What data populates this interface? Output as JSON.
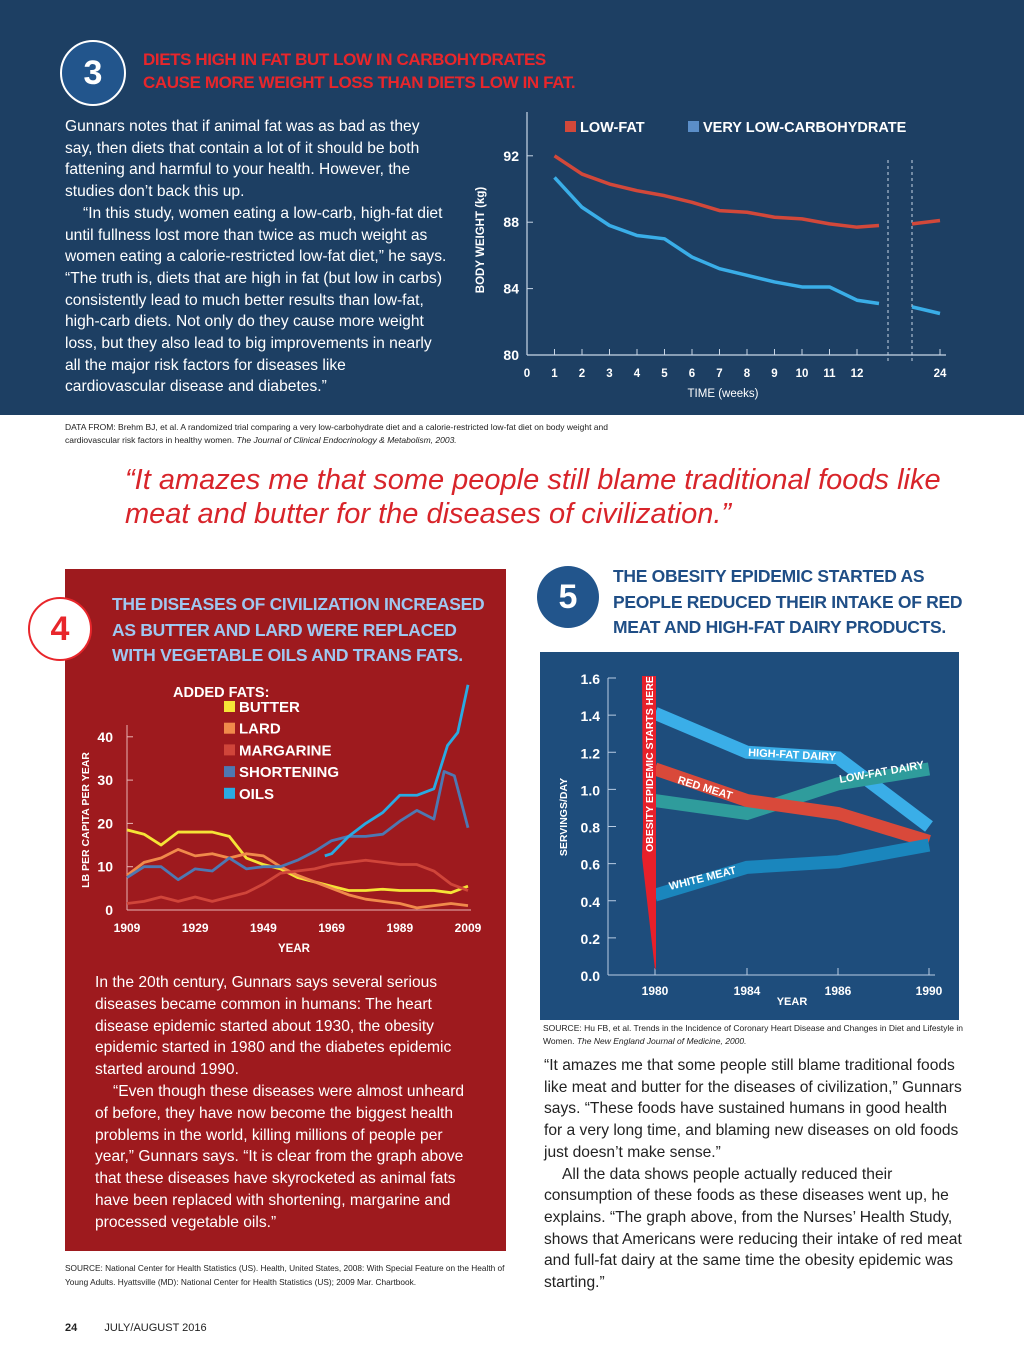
{
  "section3": {
    "number": "3",
    "title_line1": "DIETS HIGH IN FAT BUT LOW IN CARBOHYDRATES",
    "title_line2": "CAUSE MORE WEIGHT LOSS THAN DIETS LOW IN FAT.",
    "paragraphs": [
      "Gunnars notes that if animal fat was as bad as they say, then diets that contain a lot of it should be both fattening and harmful to your health. However, the studies don’t back this up.",
      "“In this study, women eating a low-carb, high-fat diet until fullness lost more than twice as much weight as women eating a calorie-restricted low-fat diet,” he says. “The truth is, diets that are high in fat (but low in carbs) consistently lead to much better results than low-fat, high-carb diets. Not only do they cause more weight loss, but they also lead to big improvements in nearly all the major risk factors for diseases like cardiovascular disease and diabetes.”"
    ],
    "source_text": "DATA FROM: Brehm BJ, et al. A randomized trial comparing a very low-carbohydrate diet and a calorie-restricted low-fat diet on body weight and cardiovascular risk factors in healthy women. ",
    "source_journal": "The Journal of Clinical Endocrinology & Metabolism, 2003."
  },
  "pull_quote": "“It amazes me that some people still blame traditional foods like meat and butter for the diseases of civilization.”",
  "section4": {
    "number": "4",
    "title": "THE DISEASES OF CIVILIZATION INCREASED AS BUTTER AND LARD WERE REPLACED WITH VEGETABLE OILS AND TRANS FATS.",
    "paragraphs": [
      "In the 20th century, Gunnars says several serious diseases became common in humans: The heart disease epidemic started about 1930, the obesity epidemic started in 1980 and the diabetes epidemic started around 1990.",
      "“Even though these diseases were almost unheard of before, they have now become the biggest health problems in the world, killing millions of people per year,” Gunnars says. “It is clear from the graph above that these diseases have skyrocketed as animal fats have been replaced with shortening, margarine and processed vegetable oils.”"
    ],
    "source_text": "SOURCE: National Center for Health Statistics (US). Health, United States, 2008: With Special Feature on the Health of Young Adults. Hyattsville (MD): National Center for Health Statistics (US); 2009 Mar. Chartbook."
  },
  "section5": {
    "number": "5",
    "title": "THE OBESITY EPIDEMIC STARTED AS PEOPLE REDUCED THEIR INTAKE OF RED MEAT AND HIGH-FAT DAIRY PRODUCTS.",
    "source_text": "SOURCE: Hu FB, et al. Trends in the Incidence of Coronary Heart Disease and Changes in Diet and Lifestyle in Women. ",
    "source_journal": "The New England Journal of Medicine, 2000.",
    "paragraphs": [
      "“It amazes me that some people still blame traditional foods like meat and butter for the diseases of civilization,” Gunnars says. “These foods have sustained humans in good health for a very long time, and blaming new diseases on old foods just doesn’t make sense.”",
      "All the data shows people actually reduced their consumption of these foods as these diseases went up, he explains. “The graph above, from the Nurses’ Health Study, shows that Americans were reducing their intake of red meat and full-fat dairy at the same time the obesity epidemic was starting.”"
    ]
  },
  "footer": {
    "page_number": "24",
    "issue": "JULY/AUGUST 2016"
  },
  "chart_data": [
    {
      "type": "line",
      "title": "",
      "xlabel": "TIME (weeks)",
      "ylabel": "BODY WEIGHT (kg)",
      "ylim": [
        80,
        94
      ],
      "x_ticks": [
        "0",
        "1",
        "2",
        "3",
        "4",
        "5",
        "6",
        "7",
        "8",
        "9",
        "10",
        "11",
        "12",
        "24"
      ],
      "y_ticks": [
        "80",
        "84",
        "88",
        "92"
      ],
      "x": [
        1,
        2,
        3,
        4,
        5,
        6,
        7,
        8,
        9,
        10,
        11,
        12,
        "13(break)",
        24
      ],
      "legend": [
        "LOW-FAT",
        "VERY LOW-CARBOHYDRATE"
      ],
      "legend_position": "top",
      "series": [
        {
          "name": "LOW-FAT",
          "color": "#d2483a",
          "x": [
            1,
            2,
            3,
            4,
            5,
            6,
            7,
            8,
            9,
            10,
            11,
            12,
            12.8
          ],
          "values": [
            92.0,
            90.9,
            90.3,
            89.9,
            89.6,
            89.2,
            88.7,
            88.6,
            88.3,
            88.2,
            87.9,
            87.7,
            87.8
          ],
          "after_break": {
            "x": [
              13.2,
              24
            ],
            "values": [
              87.9,
              88.1
            ]
          }
        },
        {
          "name": "VERY LOW-CARBOHYDRATE",
          "color": "#3aaee8",
          "x": [
            1,
            2,
            3,
            4,
            5,
            6,
            7,
            8,
            9,
            10,
            11,
            12,
            12.8
          ],
          "values": [
            90.7,
            88.9,
            87.8,
            87.2,
            87.0,
            85.9,
            85.2,
            84.8,
            84.4,
            84.1,
            84.1,
            83.3,
            83.1
          ],
          "after_break": {
            "x": [
              13.2,
              24
            ],
            "values": [
              82.9,
              82.5
            ]
          }
        }
      ]
    },
    {
      "type": "line",
      "title": "ADDED FATS:",
      "xlabel": "YEAR",
      "ylabel": "LB PER CAPITA PER YEAR",
      "ylim": [
        0,
        42
      ],
      "x_ticks": [
        "1909",
        "1929",
        "1949",
        "1969",
        "1989",
        "2009"
      ],
      "y_ticks": [
        "0",
        "10",
        "20",
        "30",
        "40"
      ],
      "legend": [
        "BUTTER",
        "LARD",
        "MARGARINE",
        "SHORTENING",
        "OILS"
      ],
      "legend_position": "top-center",
      "series": [
        {
          "name": "BUTTER",
          "color": "#f5e437",
          "x": [
            1909,
            1914,
            1919,
            1924,
            1929,
            1934,
            1939,
            1944,
            1949,
            1954,
            1959,
            1964,
            1969,
            1974,
            1979,
            1984,
            1989,
            1994,
            1999,
            2004,
            2009
          ],
          "values": [
            18.5,
            17.5,
            15,
            18,
            18,
            18,
            17,
            12,
            10.5,
            9.5,
            7.5,
            6.5,
            5.5,
            4.5,
            4.5,
            4.8,
            4.5,
            4.5,
            4.5,
            4,
            5.5
          ]
        },
        {
          "name": "LARD",
          "color": "#f08a4b",
          "x": [
            1909,
            1914,
            1919,
            1924,
            1929,
            1934,
            1939,
            1944,
            1949,
            1954,
            1959,
            1964,
            1969,
            1974,
            1979,
            1984,
            1989,
            1994,
            1999,
            2004,
            2009
          ],
          "values": [
            8,
            11,
            12,
            14,
            12.5,
            13,
            12,
            13,
            12.5,
            10,
            8,
            6.5,
            5,
            3.5,
            2.5,
            2,
            1.5,
            0.5,
            1,
            1.5,
            1
          ]
        },
        {
          "name": "MARGARINE",
          "color": "#d0453a",
          "x": [
            1909,
            1914,
            1919,
            1924,
            1929,
            1934,
            1939,
            1944,
            1949,
            1954,
            1959,
            1964,
            1969,
            1974,
            1979,
            1984,
            1989,
            1994,
            1999,
            2004,
            2009
          ],
          "values": [
            1.5,
            2,
            3,
            2,
            3,
            2,
            3,
            4,
            6,
            8.5,
            9,
            9.5,
            10.5,
            11,
            11.5,
            11,
            10.5,
            10.5,
            9,
            6,
            4.5
          ]
        },
        {
          "name": "SHORTENING",
          "color": "#4e78b2",
          "x": [
            1909,
            1914,
            1919,
            1924,
            1929,
            1934,
            1939,
            1944,
            1949,
            1954,
            1959,
            1964,
            1969,
            1974,
            1979,
            1984,
            1989,
            1994,
            1999,
            2002,
            2005,
            2009
          ],
          "values": [
            7.5,
            10,
            10,
            7,
            9.5,
            9,
            12,
            9.5,
            10,
            10,
            11.5,
            13.5,
            16,
            17,
            17,
            17.5,
            20.5,
            23,
            21,
            32,
            31,
            19
          ]
        },
        {
          "name": "OILS",
          "color": "#2aaae2",
          "x": [
            1967,
            1969,
            1974,
            1979,
            1984,
            1989,
            1994,
            1999,
            2003,
            2006,
            2009
          ],
          "values": [
            12.5,
            13,
            17,
            20,
            22.5,
            26.5,
            26.5,
            28,
            38,
            41,
            52
          ]
        }
      ]
    },
    {
      "type": "line",
      "title": "",
      "xlabel": "YEAR",
      "ylabel": "SERVINGS/DAY",
      "ylim": [
        0,
        1.6
      ],
      "x_ticks": [
        "1980",
        "1984",
        "1986",
        "1990"
      ],
      "y_ticks": [
        "0.0",
        "0.2",
        "0.4",
        "0.6",
        "0.8",
        "1.0",
        "1.2",
        "1.4",
        "1.6"
      ],
      "annotations": [
        "OBESITY EPIDEMIC STARTS HERE"
      ],
      "series": [
        {
          "name": "HIGH-FAT DAIRY",
          "color": "#3aaee8",
          "x": [
            "1980",
            "1984",
            "1986",
            "1990"
          ],
          "values": [
            1.41,
            1.2,
            1.17,
            0.8
          ]
        },
        {
          "name": "LOW-FAT DAIRY",
          "color": "#2f9c9c",
          "x": [
            "1980",
            "1984",
            "1986",
            "1990"
          ],
          "values": [
            0.94,
            0.87,
            1.03,
            1.11
          ]
        },
        {
          "name": "RED MEAT",
          "color": "#d9493a",
          "x": [
            "1980",
            "1984",
            "1986",
            "1990"
          ],
          "values": [
            1.11,
            0.94,
            0.87,
            0.72
          ]
        },
        {
          "name": "WHITE MEAT",
          "color": "#1a86bd",
          "x": [
            "1980",
            "1984",
            "1986",
            "1990"
          ],
          "values": [
            0.43,
            0.58,
            0.61,
            0.7
          ]
        }
      ]
    }
  ]
}
